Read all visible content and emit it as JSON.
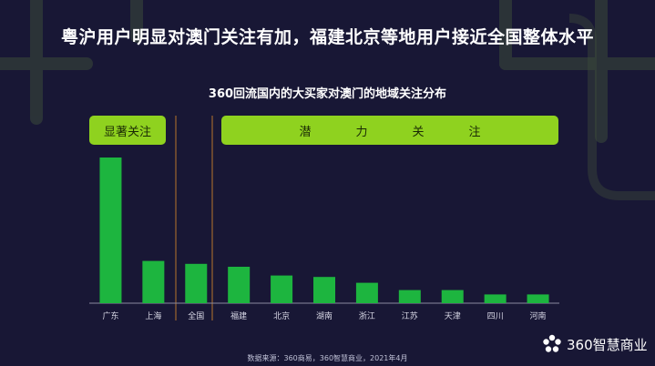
{
  "title": "粤沪用户明显对澳门关注有加，福建北京等地用户接近全国整体水平",
  "chart_data": {
    "type": "bar",
    "title": "360回流国内的大买家对澳门的地域关注分布",
    "categories": [
      "广东",
      "上海",
      "全国",
      "福建",
      "北京",
      "湖南",
      "浙江",
      "江苏",
      "天津",
      "四川",
      "河南"
    ],
    "values": [
      100,
      29,
      27,
      25,
      19,
      18,
      14,
      9,
      9,
      6,
      6
    ],
    "ylim": [
      0,
      100
    ],
    "bar_color": "#1db53f",
    "groups": [
      {
        "label": "显著关注",
        "categories": [
          "广东",
          "上海"
        ]
      },
      {
        "label": "潜力关注",
        "categories": [
          "福建",
          "北京",
          "湖南",
          "浙江",
          "江苏",
          "天津",
          "四川",
          "河南"
        ]
      }
    ]
  },
  "group_labels": {
    "notable": "显著关注",
    "potential": [
      "潜",
      "力",
      "关",
      "注"
    ]
  },
  "source": "数据来源：360商易，360智慧商业，2021年4月",
  "logo_text": "360智慧商业",
  "colors": {
    "background": "#181735",
    "accent_green": "#8fd21f",
    "bar": "#1db53f",
    "divider": "#b8742a"
  }
}
